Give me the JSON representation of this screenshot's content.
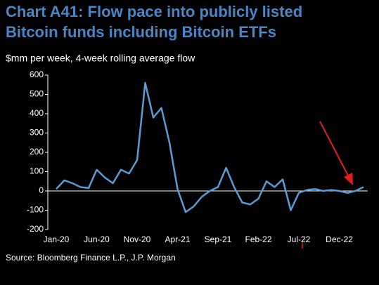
{
  "chart_data": {
    "type": "line",
    "title": [
      "Chart A41: Flow pace into publicly listed",
      "Bitcoin funds including Bitcoin ETFs"
    ],
    "subtitle": "$mm per week, 4-week rolling average flow",
    "source": "Source: Bloomberg Finance L.P., J.P. Morgan",
    "categories": [
      "Jan-20",
      null,
      null,
      null,
      null,
      "Jun-20",
      null,
      null,
      null,
      null,
      "Nov-20",
      null,
      null,
      null,
      null,
      "Apr-21",
      null,
      null,
      null,
      null,
      "Sep-21",
      null,
      null,
      null,
      null,
      "Feb-22",
      null,
      null,
      null,
      null,
      "Jul-22",
      null,
      null,
      null,
      null,
      "Dec-22",
      null,
      null,
      null
    ],
    "values": [
      10,
      55,
      40,
      20,
      15,
      110,
      70,
      40,
      110,
      90,
      160,
      560,
      380,
      430,
      250,
      10,
      -110,
      -80,
      -30,
      0,
      20,
      120,
      20,
      -60,
      -70,
      -40,
      50,
      20,
      60,
      -100,
      -10,
      5,
      10,
      0,
      5,
      0,
      -10,
      0,
      20
    ],
    "color": "#5b9bd5",
    "ylim": [
      -200,
      600
    ],
    "yticks": [
      -200,
      -100,
      0,
      100,
      200,
      300,
      400,
      500,
      600
    ],
    "grid": false
  }
}
